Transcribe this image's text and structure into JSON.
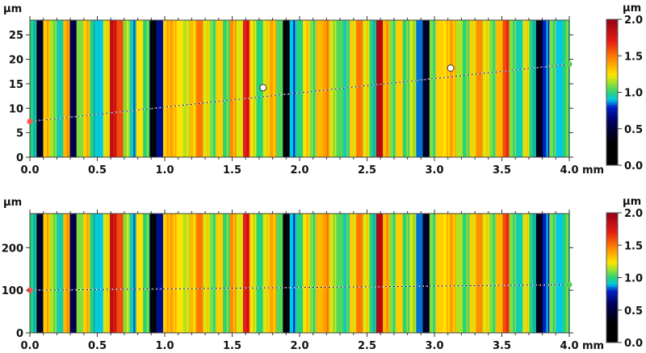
{
  "chart_data": [
    {
      "type": "heatmap",
      "unit_y": "µm",
      "unit_x": "mm",
      "xlim": [
        0,
        4.0
      ],
      "ylim": [
        0,
        28
      ],
      "x_ticks": [
        "0.0",
        "0.5",
        "1.0",
        "1.5",
        "2.0",
        "2.5",
        "3.0",
        "3.5",
        "4.0"
      ],
      "x_tick_values": [
        0,
        0.5,
        1,
        1.5,
        2,
        2.5,
        3,
        3.5,
        4
      ],
      "y_ticks": [
        "0",
        "5",
        "10",
        "15",
        "20",
        "25"
      ],
      "y_tick_values": [
        0,
        5,
        10,
        15,
        20,
        25
      ],
      "colorbar": {
        "unit": "µm",
        "range": [
          0,
          2.0
        ],
        "ticks": [
          "0.0",
          "0.5",
          "1.0",
          "1.5",
          "2.0"
        ],
        "tick_values": [
          0,
          0.5,
          1,
          1.5,
          2
        ]
      },
      "profile_line": {
        "start": [
          0,
          7.3
        ],
        "end": [
          4.0,
          19.0
        ]
      },
      "markers": [
        [
          1.73,
          14.2
        ],
        [
          3.12,
          18.2
        ]
      ]
    },
    {
      "type": "heatmap",
      "unit_y": "µm",
      "unit_x": "mm",
      "xlim": [
        0,
        4.0
      ],
      "ylim": [
        0,
        280
      ],
      "x_ticks": [
        "0.0",
        "0.5",
        "1.0",
        "1.5",
        "2.0",
        "2.5",
        "3.0",
        "3.5",
        "4.0"
      ],
      "x_tick_values": [
        0,
        0.5,
        1,
        1.5,
        2,
        2.5,
        3,
        3.5,
        4
      ],
      "y_ticks": [
        "0",
        "100",
        "200"
      ],
      "y_tick_values": [
        0,
        100,
        200
      ],
      "colorbar": {
        "unit": "µm",
        "range": [
          0,
          2.0
        ],
        "ticks": [
          "0.0",
          "0.5",
          "1.0",
          "1.5",
          "2.0"
        ],
        "tick_values": [
          0,
          0.5,
          1,
          1.5,
          2
        ]
      },
      "profile_line": {
        "start": [
          0,
          100
        ],
        "end": [
          4.0,
          113
        ]
      },
      "markers": []
    }
  ],
  "stripe_heights": [
    1.0,
    0.45,
    1.3,
    1.15,
    0.95,
    1.35,
    0.6,
    1.1,
    1.3,
    1.0,
    0.9,
    1.2,
    1.85,
    1.6,
    1.1,
    0.95,
    1.25,
    1.0,
    0.35,
    0.7,
    1.3,
    1.4,
    1.25,
    1.15,
    1.35,
    1.5,
    1.2,
    1.1,
    1.3,
    1.0,
    1.45,
    1.2,
    1.7,
    1.25,
    1.0,
    1.2,
    1.4,
    1.05,
    0.3,
    0.9,
    1.0,
    1.25,
    1.1,
    1.35,
    1.4,
    1.2,
    1.05,
    0.95,
    1.3,
    1.5,
    1.2,
    1.0,
    1.9,
    1.35,
    1.1,
    1.3,
    1.0,
    1.2,
    0.85,
    0.4,
    1.1,
    1.3,
    1.25,
    1.4,
    1.15,
    1.0,
    1.3,
    1.45,
    1.2,
    1.1,
    1.35,
    1.6,
    1.1,
    0.95,
    1.2,
    1.0,
    0.4,
    0.8,
    1.1,
    0.9,
    1.0
  ]
}
